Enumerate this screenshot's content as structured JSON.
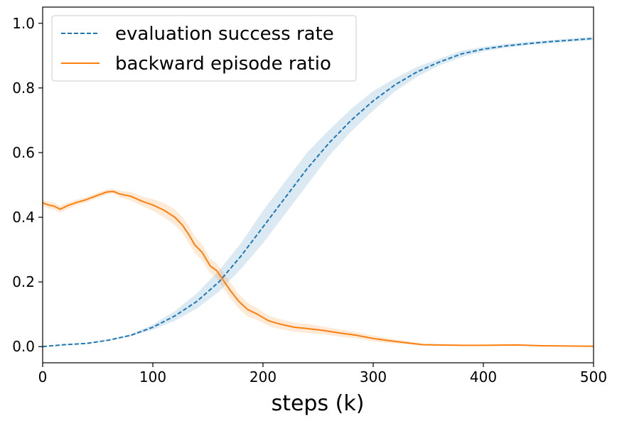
{
  "chart_data": {
    "type": "line",
    "title": "",
    "xlabel": "steps (k)",
    "ylabel": "",
    "xlim": [
      0,
      500
    ],
    "ylim": [
      -0.05,
      1.05
    ],
    "xticks": [
      0,
      100,
      200,
      300,
      400,
      500
    ],
    "xtick_labels": [
      "0",
      "100",
      "200",
      "300",
      "400",
      "500"
    ],
    "yticks": [
      0.0,
      0.2,
      0.4,
      0.6,
      0.8,
      1.0
    ],
    "ytick_labels": [
      "0.0",
      "0.2",
      "0.4",
      "0.6",
      "0.8",
      "1.0"
    ],
    "grid": false,
    "legend_position": "top-left",
    "series": [
      {
        "name": "evaluation success rate",
        "style": "dashed",
        "color": "#1f77b4",
        "x": [
          0,
          20,
          40,
          60,
          80,
          100,
          120,
          140,
          160,
          180,
          200,
          220,
          240,
          260,
          280,
          300,
          320,
          340,
          360,
          380,
          400,
          420,
          440,
          460,
          480,
          500
        ],
        "y": [
          0.0,
          0.006,
          0.01,
          0.02,
          0.035,
          0.06,
          0.095,
          0.14,
          0.2,
          0.28,
          0.37,
          0.46,
          0.55,
          0.63,
          0.7,
          0.76,
          0.81,
          0.85,
          0.88,
          0.905,
          0.92,
          0.93,
          0.937,
          0.943,
          0.948,
          0.953
        ],
        "lower": [
          0.0,
          0.005,
          0.009,
          0.018,
          0.032,
          0.052,
          0.08,
          0.118,
          0.17,
          0.24,
          0.32,
          0.41,
          0.5,
          0.59,
          0.665,
          0.73,
          0.79,
          0.835,
          0.87,
          0.895,
          0.913,
          0.924,
          0.932,
          0.938,
          0.943,
          0.948
        ],
        "upper": [
          0.0,
          0.007,
          0.011,
          0.022,
          0.038,
          0.068,
          0.11,
          0.165,
          0.235,
          0.32,
          0.42,
          0.51,
          0.6,
          0.67,
          0.735,
          0.79,
          0.83,
          0.865,
          0.89,
          0.915,
          0.927,
          0.936,
          0.942,
          0.948,
          0.953,
          0.958
        ]
      },
      {
        "name": "backward episode ratio",
        "style": "solid",
        "color": "#ff7f0e",
        "x": [
          0,
          5,
          10,
          16,
          22,
          30,
          40,
          50,
          58,
          64,
          70,
          80,
          90,
          100,
          110,
          120,
          127,
          132,
          138,
          145,
          152,
          158,
          164,
          170,
          178,
          186,
          195,
          205,
          215,
          228,
          240,
          255,
          270,
          285,
          300,
          315,
          330,
          345,
          360,
          380,
          400,
          430,
          450,
          470,
          500
        ],
        "y": [
          0.445,
          0.438,
          0.435,
          0.425,
          0.435,
          0.445,
          0.455,
          0.468,
          0.478,
          0.48,
          0.472,
          0.465,
          0.45,
          0.438,
          0.422,
          0.4,
          0.375,
          0.35,
          0.315,
          0.29,
          0.25,
          0.235,
          0.205,
          0.175,
          0.14,
          0.115,
          0.1,
          0.08,
          0.07,
          0.06,
          0.056,
          0.05,
          0.042,
          0.035,
          0.025,
          0.018,
          0.012,
          0.006,
          0.005,
          0.004,
          0.004,
          0.005,
          0.003,
          0.002,
          0.001
        ],
        "lower": [
          0.435,
          0.428,
          0.424,
          0.414,
          0.425,
          0.436,
          0.447,
          0.46,
          0.47,
          0.473,
          0.462,
          0.452,
          0.435,
          0.42,
          0.4,
          0.376,
          0.35,
          0.323,
          0.29,
          0.265,
          0.228,
          0.212,
          0.18,
          0.15,
          0.118,
          0.094,
          0.082,
          0.064,
          0.055,
          0.046,
          0.042,
          0.038,
          0.031,
          0.025,
          0.016,
          0.011,
          0.007,
          0.003,
          0.003,
          0.002,
          0.002,
          0.003,
          0.002,
          0.001,
          0.0
        ],
        "upper": [
          0.455,
          0.448,
          0.446,
          0.436,
          0.445,
          0.454,
          0.463,
          0.476,
          0.486,
          0.488,
          0.482,
          0.478,
          0.465,
          0.456,
          0.444,
          0.424,
          0.4,
          0.377,
          0.34,
          0.315,
          0.272,
          0.258,
          0.23,
          0.2,
          0.162,
          0.136,
          0.118,
          0.096,
          0.085,
          0.074,
          0.07,
          0.062,
          0.053,
          0.045,
          0.034,
          0.025,
          0.017,
          0.009,
          0.007,
          0.006,
          0.006,
          0.007,
          0.005,
          0.003,
          0.002
        ]
      }
    ]
  }
}
